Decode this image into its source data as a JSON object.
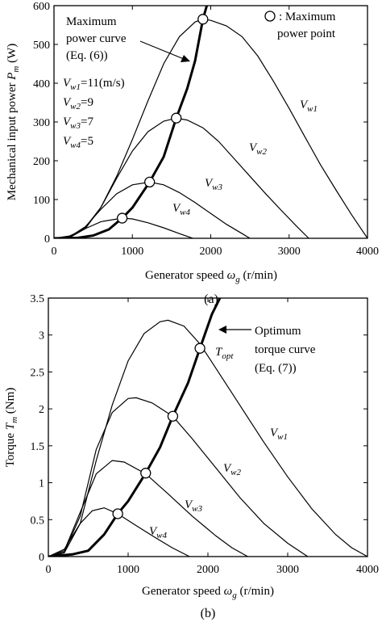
{
  "chart_data": [
    {
      "type": "line",
      "panel": "(a)",
      "xlabel": {
        "main": "Generator speed ",
        "sym": "ω",
        "sub": "g",
        "unit": " (r/min)"
      },
      "ylabel": {
        "main": "Mechanical input power ",
        "sym": "P",
        "sub": "m",
        "unit": " (W)"
      },
      "xlim": [
        0,
        4000
      ],
      "ylim": [
        0,
        600
      ],
      "xticks": [
        0,
        1000,
        2000,
        3000,
        4000
      ],
      "yticks": [
        0,
        100,
        200,
        300,
        400,
        500,
        600
      ],
      "grid": false,
      "series": [
        {
          "name": "Vw1",
          "peak_x": 1900,
          "peak_y": 565,
          "end_x": 4000,
          "points": [
            [
              0,
              0
            ],
            [
              200,
              2
            ],
            [
              400,
              25
            ],
            [
              600,
              80
            ],
            [
              800,
              160
            ],
            [
              1000,
              255
            ],
            [
              1200,
              355
            ],
            [
              1400,
              450
            ],
            [
              1600,
              520
            ],
            [
              1800,
              558
            ],
            [
              1900,
              565
            ],
            [
              2000,
              562
            ],
            [
              2200,
              548
            ],
            [
              2400,
              520
            ],
            [
              2600,
              470
            ],
            [
              2800,
              405
            ],
            [
              3000,
              335
            ],
            [
              3200,
              262
            ],
            [
              3400,
              190
            ],
            [
              3600,
              124
            ],
            [
              3800,
              60
            ],
            [
              4000,
              0
            ]
          ]
        },
        {
          "name": "Vw2",
          "peak_x": 1560,
          "peak_y": 310,
          "end_x": 3250,
          "points": [
            [
              0,
              0
            ],
            [
              200,
              3
            ],
            [
              400,
              28
            ],
            [
              600,
              80
            ],
            [
              800,
              155
            ],
            [
              1000,
              225
            ],
            [
              1200,
              275
            ],
            [
              1400,
              302
            ],
            [
              1560,
              310
            ],
            [
              1700,
              305
            ],
            [
              1900,
              285
            ],
            [
              2100,
              250
            ],
            [
              2300,
              205
            ],
            [
              2500,
              160
            ],
            [
              2700,
              115
            ],
            [
              2900,
              72
            ],
            [
              3100,
              30
            ],
            [
              3250,
              0
            ]
          ]
        },
        {
          "name": "Vw3",
          "peak_x": 1220,
          "peak_y": 145,
          "end_x": 2500,
          "points": [
            [
              0,
              0
            ],
            [
              200,
              4
            ],
            [
              400,
              30
            ],
            [
              600,
              75
            ],
            [
              800,
              115
            ],
            [
              1000,
              138
            ],
            [
              1220,
              145
            ],
            [
              1400,
              138
            ],
            [
              1600,
              118
            ],
            [
              1800,
              92
            ],
            [
              2000,
              64
            ],
            [
              2200,
              36
            ],
            [
              2400,
              12
            ],
            [
              2500,
              0
            ]
          ]
        },
        {
          "name": "Vw4",
          "peak_x": 870,
          "peak_y": 52,
          "end_x": 1770,
          "points": [
            [
              0,
              0
            ],
            [
              200,
              6
            ],
            [
              400,
              25
            ],
            [
              600,
              43
            ],
            [
              870,
              52
            ],
            [
              1000,
              50
            ],
            [
              1200,
              40
            ],
            [
              1400,
              27
            ],
            [
              1600,
              12
            ],
            [
              1770,
              0
            ]
          ]
        }
      ],
      "max_power_curve": {
        "points": [
          [
            0,
            0
          ],
          [
            300,
            1
          ],
          [
            500,
            7
          ],
          [
            700,
            23
          ],
          [
            870,
            52
          ],
          [
            1000,
            79
          ],
          [
            1220,
            145
          ],
          [
            1400,
            210
          ],
          [
            1560,
            310
          ],
          [
            1700,
            386
          ],
          [
            1800,
            458
          ],
          [
            1900,
            565
          ],
          [
            1950,
            600
          ]
        ]
      },
      "max_power_points": [
        [
          870,
          52
        ],
        [
          1220,
          145
        ],
        [
          1560,
          310
        ],
        [
          1900,
          565
        ]
      ],
      "annotations": {
        "curve_label": [
          "Maximum",
          "power curve",
          "(Eq. (6))"
        ],
        "marker_label": [
          ": Maximum",
          "power point"
        ],
        "wind_speeds": [
          {
            "sym": "V",
            "sub": "w1",
            "text": "=11(m/s)"
          },
          {
            "sym": "V",
            "sub": "w2",
            "text": "=9"
          },
          {
            "sym": "V",
            "sub": "w3",
            "text": "=7"
          },
          {
            "sym": "V",
            "sub": "w4",
            "text": "=5"
          }
        ]
      },
      "series_labels": [
        {
          "sym": "V",
          "sub": "w1"
        },
        {
          "sym": "V",
          "sub": "w2"
        },
        {
          "sym": "V",
          "sub": "w3"
        },
        {
          "sym": "V",
          "sub": "w4"
        }
      ]
    },
    {
      "type": "line",
      "panel": "(b)",
      "xlabel": {
        "main": "Generator speed ",
        "sym": "ω",
        "sub": "g",
        "unit": " (r/min)"
      },
      "ylabel": {
        "main": "Torque ",
        "sym": "T",
        "sub": "m",
        "unit": " (Nm)"
      },
      "xlim": [
        0,
        4000
      ],
      "ylim": [
        0,
        3.5
      ],
      "xticks": [
        0,
        1000,
        2000,
        3000,
        4000
      ],
      "yticks": [
        0,
        0.5,
        1,
        1.5,
        2,
        2.5,
        3,
        3.5
      ],
      "grid": false,
      "series": [
        {
          "name": "Vw1",
          "end_x": 4000,
          "points": [
            [
              0,
              0
            ],
            [
              200,
              0.05
            ],
            [
              400,
              0.45
            ],
            [
              600,
              1.3
            ],
            [
              800,
              2.05
            ],
            [
              1000,
              2.65
            ],
            [
              1200,
              3.02
            ],
            [
              1400,
              3.18
            ],
            [
              1500,
              3.2
            ],
            [
              1700,
              3.12
            ],
            [
              1900,
              2.88
            ],
            [
              2100,
              2.55
            ],
            [
              2400,
              2.05
            ],
            [
              2700,
              1.55
            ],
            [
              3000,
              1.08
            ],
            [
              3300,
              0.65
            ],
            [
              3600,
              0.3
            ],
            [
              3800,
              0.12
            ],
            [
              4000,
              0
            ]
          ]
        },
        {
          "name": "Vw2",
          "end_x": 3250,
          "points": [
            [
              0,
              0
            ],
            [
              200,
              0.06
            ],
            [
              400,
              0.55
            ],
            [
              600,
              1.45
            ],
            [
              800,
              1.95
            ],
            [
              1000,
              2.14
            ],
            [
              1100,
              2.15
            ],
            [
              1300,
              2.08
            ],
            [
              1560,
              1.9
            ],
            [
              1800,
              1.6
            ],
            [
              2100,
              1.2
            ],
            [
              2400,
              0.8
            ],
            [
              2700,
              0.45
            ],
            [
              3000,
              0.18
            ],
            [
              3250,
              0
            ]
          ]
        },
        {
          "name": "Vw3",
          "end_x": 2500,
          "points": [
            [
              0,
              0
            ],
            [
              200,
              0.08
            ],
            [
              400,
              0.6
            ],
            [
              600,
              1.12
            ],
            [
              800,
              1.3
            ],
            [
              950,
              1.28
            ],
            [
              1220,
              1.12
            ],
            [
              1500,
              0.85
            ],
            [
              1800,
              0.55
            ],
            [
              2100,
              0.28
            ],
            [
              2300,
              0.12
            ],
            [
              2500,
              0
            ]
          ]
        },
        {
          "name": "Vw4",
          "end_x": 1770,
          "points": [
            [
              0,
              0
            ],
            [
              200,
              0.1
            ],
            [
              400,
              0.45
            ],
            [
              550,
              0.62
            ],
            [
              700,
              0.66
            ],
            [
              870,
              0.58
            ],
            [
              1100,
              0.42
            ],
            [
              1350,
              0.25
            ],
            [
              1550,
              0.12
            ],
            [
              1770,
              0
            ]
          ]
        }
      ],
      "optimum_torque_curve": {
        "points": [
          [
            0,
            0
          ],
          [
            300,
            0.03
          ],
          [
            500,
            0.08
          ],
          [
            700,
            0.3
          ],
          [
            870,
            0.58
          ],
          [
            1000,
            0.75
          ],
          [
            1220,
            1.13
          ],
          [
            1400,
            1.48
          ],
          [
            1560,
            1.9
          ],
          [
            1750,
            2.35
          ],
          [
            1900,
            2.82
          ],
          [
            2050,
            3.28
          ],
          [
            2150,
            3.5
          ]
        ]
      },
      "operating_points": [
        [
          870,
          0.58
        ],
        [
          1220,
          1.13
        ],
        [
          1560,
          1.9
        ],
        [
          1900,
          2.82
        ]
      ],
      "annotations": {
        "curve_label": [
          "Optimum",
          "torque curve",
          "(Eq. (7))"
        ],
        "tsym": {
          "sym": "T",
          "sub": "opt"
        }
      },
      "series_labels": [
        {
          "sym": "V",
          "sub": "w1"
        },
        {
          "sym": "V",
          "sub": "w2"
        },
        {
          "sym": "V",
          "sub": "w3"
        },
        {
          "sym": "V",
          "sub": "w4"
        }
      ]
    }
  ]
}
